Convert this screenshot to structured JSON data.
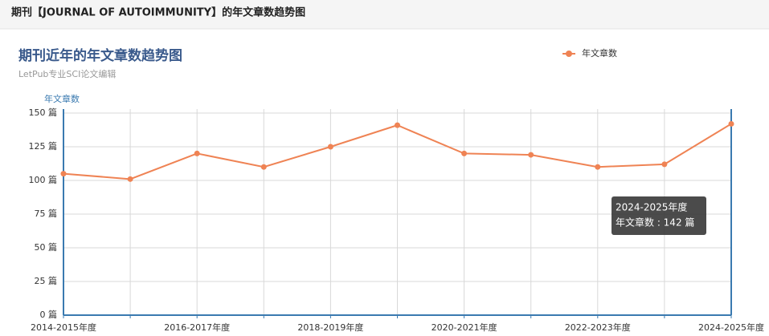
{
  "header": {
    "title": "期刊【JOURNAL OF AUTOIMMUNITY】的年文章数趋势图"
  },
  "chart_data": {
    "type": "line",
    "title": "期刊近年的年文章数趋势图",
    "subtitle": "LetPub专业SCI论文编辑",
    "y_axis_label": "年文章数",
    "categories": [
      "2014-2015年度",
      null,
      "2016-2017年度",
      null,
      "2018-2019年度",
      null,
      "2020-2021年度",
      null,
      "2022-2023年度",
      null,
      "2024-2025年度"
    ],
    "series": [
      {
        "name": "年文章数",
        "color": "#ef8354",
        "values": [
          105,
          101,
          120,
          110,
          125,
          141,
          120,
          119,
          110,
          112,
          142
        ]
      }
    ],
    "ylim": [
      0,
      150
    ],
    "yticks": [
      {
        "value": 0,
        "label": "0 篇"
      },
      {
        "value": 25,
        "label": "25 篇"
      },
      {
        "value": 50,
        "label": "50 篇"
      },
      {
        "value": 75,
        "label": "75 篇"
      },
      {
        "value": 100,
        "label": "100 篇"
      },
      {
        "value": 125,
        "label": "125 篇"
      },
      {
        "value": 150,
        "label": "150 篇"
      }
    ],
    "grid": true,
    "legend": "top-right",
    "tooltip_text": "年文章数 : 142 篇"
  }
}
